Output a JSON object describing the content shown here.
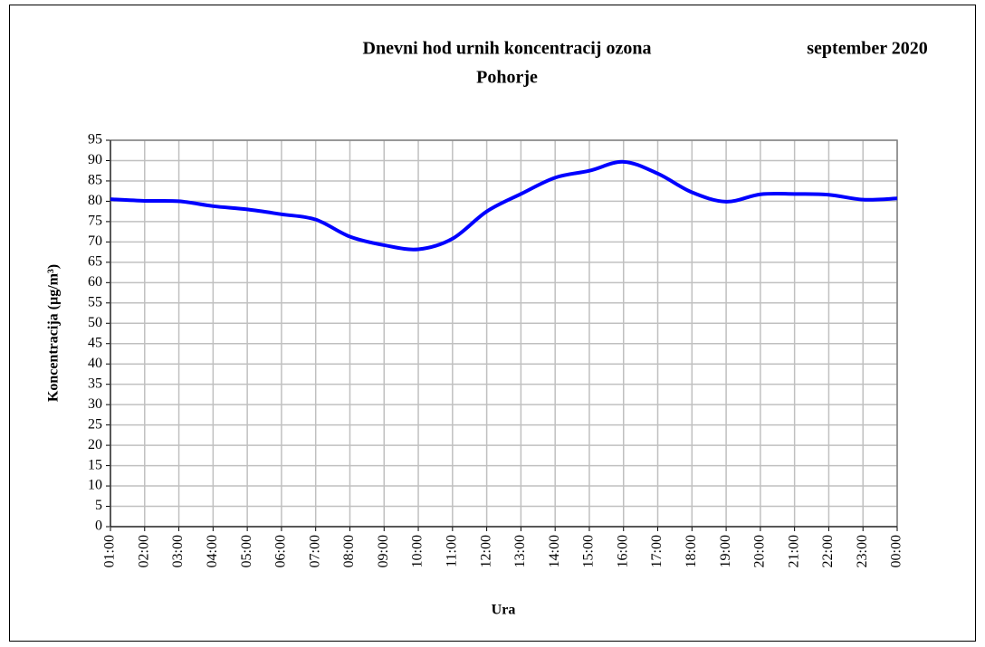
{
  "chart_data": {
    "type": "line",
    "title": "Dnevni hod urnih koncentracij ozona",
    "subtitle": "Pohorje",
    "period": "september 2020",
    "x_label": "Ura",
    "y_label": "Koncentracija  (µg/m³)",
    "categories": [
      "01:00",
      "02:00",
      "03:00",
      "04:00",
      "05:00",
      "06:00",
      "07:00",
      "08:00",
      "09:00",
      "10:00",
      "11:00",
      "12:00",
      "13:00",
      "14:00",
      "15:00",
      "16:00",
      "17:00",
      "18:00",
      "19:00",
      "20:00",
      "21:00",
      "22:00",
      "23:00",
      "00:00"
    ],
    "series": [
      {
        "color": "#0000ff",
        "values": [
          80.5,
          80.1,
          80.0,
          78.8,
          78.0,
          76.8,
          75.5,
          71.3,
          69.2,
          68.2,
          70.8,
          77.5,
          81.8,
          85.8,
          87.5,
          89.7,
          86.8,
          82.2,
          79.9,
          81.7,
          81.8,
          81.6,
          80.4,
          80.7
        ]
      }
    ],
    "ylim": [
      0,
      95
    ],
    "yticks": [
      0,
      5,
      10,
      15,
      20,
      25,
      30,
      35,
      40,
      45,
      50,
      55,
      60,
      65,
      70,
      75,
      80,
      85,
      90,
      95
    ],
    "grid": true
  }
}
